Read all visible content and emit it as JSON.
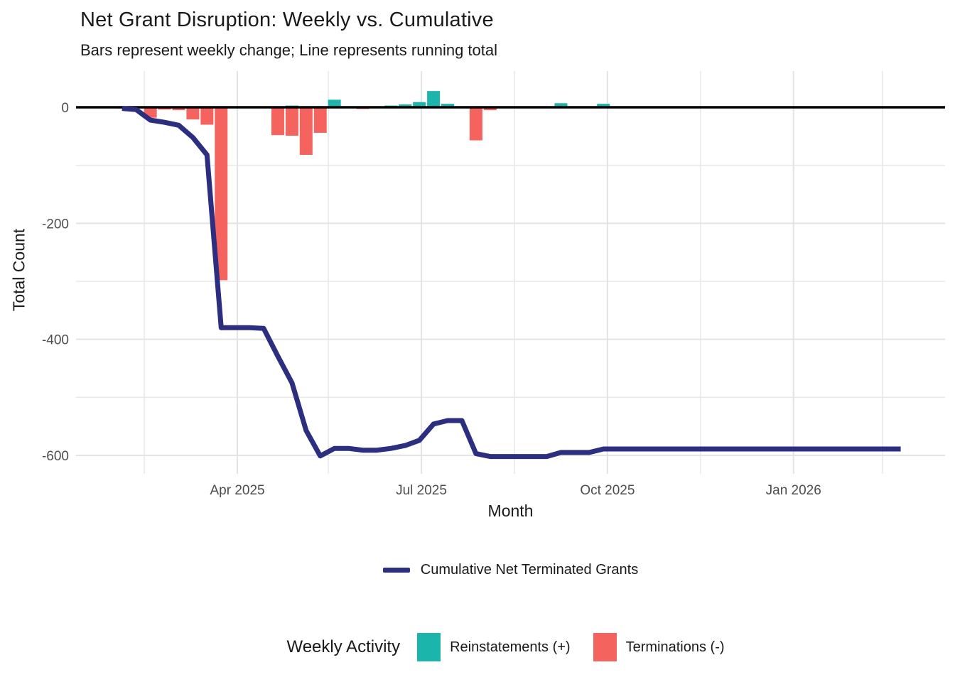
{
  "chart_data": {
    "type": "bar-line-combo",
    "title": "Net Grant Disruption: Weekly vs. Cumulative",
    "subtitle": "Bars represent weekly change; Line represents running total",
    "xlabel": "Month",
    "ylabel": "Total Count",
    "ylim": [
      -625,
      60
    ],
    "grid": true,
    "line_legend": "Cumulative Net Terminated Grants",
    "bar_legend_title": "Weekly Activity",
    "bar_legend": [
      {
        "label": "Reinstatements (+)",
        "color": "#1CB5AC"
      },
      {
        "label": "Terminations (-)",
        "color": "#F4635D"
      }
    ],
    "colors": {
      "reinstatement": "#1CB5AC",
      "termination": "#F4635D",
      "cumulative_line": "#2C2E80",
      "zero_line": "#000000",
      "grid_major": "#E3E3E3",
      "grid_minor": "#E9E9E9",
      "tick_text": "#4D4D4D",
      "text": "#1A1A1A"
    },
    "x_major_ticks": [
      {
        "label": "Apr 2025",
        "date": "2025-04-01"
      },
      {
        "label": "Jul 2025",
        "date": "2025-07-01"
      },
      {
        "label": "Oct 2025",
        "date": "2025-10-01"
      },
      {
        "label": "Jan 2026",
        "date": "2026-01-01"
      }
    ],
    "x_minor_dates": [
      "2025-02-14",
      "2025-05-16",
      "2025-08-16",
      "2025-11-16",
      "2026-02-14"
    ],
    "y_major_ticks": [
      {
        "label": "0",
        "value": 0
      },
      {
        "label": "-200",
        "value": -200
      },
      {
        "label": "-400",
        "value": -400
      },
      {
        "label": "-600",
        "value": -600
      }
    ],
    "y_minor_values": [
      -100,
      -300,
      -500
    ],
    "series": {
      "weekly": [
        {
          "week": "2025-02-03",
          "reinstatements": 0,
          "terminations": -2,
          "cumulative": -2
        },
        {
          "week": "2025-02-10",
          "reinstatements": 0,
          "terminations": -2,
          "cumulative": -4
        },
        {
          "week": "2025-02-17",
          "reinstatements": 0,
          "terminations": -18,
          "cumulative": -22
        },
        {
          "week": "2025-02-24",
          "reinstatements": 0,
          "terminations": -4,
          "cumulative": -26
        },
        {
          "week": "2025-03-03",
          "reinstatements": 0,
          "terminations": -5,
          "cumulative": -31
        },
        {
          "week": "2025-03-10",
          "reinstatements": 0,
          "terminations": -21,
          "cumulative": -52
        },
        {
          "week": "2025-03-17",
          "reinstatements": 0,
          "terminations": -30,
          "cumulative": -82
        },
        {
          "week": "2025-03-24",
          "reinstatements": 0,
          "terminations": -298,
          "cumulative": -380
        },
        {
          "week": "2025-03-31",
          "reinstatements": 0,
          "terminations": 0,
          "cumulative": -380
        },
        {
          "week": "2025-04-07",
          "reinstatements": 0,
          "terminations": 0,
          "cumulative": -380
        },
        {
          "week": "2025-04-14",
          "reinstatements": 0,
          "terminations": -1,
          "cumulative": -381
        },
        {
          "week": "2025-04-21",
          "reinstatements": 0,
          "terminations": -48,
          "cumulative": -429
        },
        {
          "week": "2025-04-28",
          "reinstatements": 3,
          "terminations": -49,
          "cumulative": -475
        },
        {
          "week": "2025-05-05",
          "reinstatements": 0,
          "terminations": -82,
          "cumulative": -557
        },
        {
          "week": "2025-05-12",
          "reinstatements": 0,
          "terminations": -44,
          "cumulative": -601
        },
        {
          "week": "2025-05-19",
          "reinstatements": 13,
          "terminations": 0,
          "cumulative": -588
        },
        {
          "week": "2025-05-26",
          "reinstatements": 0,
          "terminations": 0,
          "cumulative": -588
        },
        {
          "week": "2025-06-02",
          "reinstatements": 0,
          "terminations": -3,
          "cumulative": -591
        },
        {
          "week": "2025-06-09",
          "reinstatements": 0,
          "terminations": 0,
          "cumulative": -591
        },
        {
          "week": "2025-06-16",
          "reinstatements": 3,
          "terminations": 0,
          "cumulative": -588
        },
        {
          "week": "2025-06-23",
          "reinstatements": 5,
          "terminations": 0,
          "cumulative": -583
        },
        {
          "week": "2025-06-30",
          "reinstatements": 9,
          "terminations": 0,
          "cumulative": -574
        },
        {
          "week": "2025-07-07",
          "reinstatements": 28,
          "terminations": 0,
          "cumulative": -546
        },
        {
          "week": "2025-07-14",
          "reinstatements": 6,
          "terminations": 0,
          "cumulative": -540
        },
        {
          "week": "2025-07-21",
          "reinstatements": 0,
          "terminations": 0,
          "cumulative": -540
        },
        {
          "week": "2025-07-28",
          "reinstatements": 0,
          "terminations": -57,
          "cumulative": -597
        },
        {
          "week": "2025-08-04",
          "reinstatements": 0,
          "terminations": -5,
          "cumulative": -602
        },
        {
          "week": "2025-08-11",
          "reinstatements": 0,
          "terminations": 0,
          "cumulative": -602
        },
        {
          "week": "2025-08-18",
          "reinstatements": 0,
          "terminations": 0,
          "cumulative": -602
        },
        {
          "week": "2025-08-25",
          "reinstatements": 0,
          "terminations": 0,
          "cumulative": -602
        },
        {
          "week": "2025-09-01",
          "reinstatements": 0,
          "terminations": 0,
          "cumulative": -602
        },
        {
          "week": "2025-09-08",
          "reinstatements": 7,
          "terminations": 0,
          "cumulative": -595
        },
        {
          "week": "2025-09-15",
          "reinstatements": 0,
          "terminations": 0,
          "cumulative": -595
        },
        {
          "week": "2025-09-22",
          "reinstatements": 0,
          "terminations": 0,
          "cumulative": -595
        },
        {
          "week": "2025-09-29",
          "reinstatements": 6,
          "terminations": 0,
          "cumulative": -589
        },
        {
          "week": "2025-10-06",
          "reinstatements": 0,
          "terminations": 0,
          "cumulative": -589
        },
        {
          "week": "2025-10-13",
          "reinstatements": 0,
          "terminations": 0,
          "cumulative": -589
        },
        {
          "week": "2025-10-20",
          "reinstatements": 0,
          "terminations": 0,
          "cumulative": -589
        },
        {
          "week": "2025-10-27",
          "reinstatements": 0,
          "terminations": 0,
          "cumulative": -589
        },
        {
          "week": "2025-11-03",
          "reinstatements": 0,
          "terminations": 0,
          "cumulative": -589
        },
        {
          "week": "2025-11-10",
          "reinstatements": 0,
          "terminations": 0,
          "cumulative": -589
        },
        {
          "week": "2025-11-17",
          "reinstatements": 0,
          "terminations": 0,
          "cumulative": -589
        },
        {
          "week": "2025-11-24",
          "reinstatements": 0,
          "terminations": 0,
          "cumulative": -589
        },
        {
          "week": "2025-12-01",
          "reinstatements": 0,
          "terminations": 0,
          "cumulative": -589
        },
        {
          "week": "2025-12-08",
          "reinstatements": 0,
          "terminations": 0,
          "cumulative": -589
        },
        {
          "week": "2025-12-15",
          "reinstatements": 0,
          "terminations": 0,
          "cumulative": -589
        },
        {
          "week": "2025-12-22",
          "reinstatements": 0,
          "terminations": 0,
          "cumulative": -589
        },
        {
          "week": "2025-12-29",
          "reinstatements": 0,
          "terminations": 0,
          "cumulative": -589
        },
        {
          "week": "2026-01-05",
          "reinstatements": 0,
          "terminations": 0,
          "cumulative": -589
        },
        {
          "week": "2026-01-12",
          "reinstatements": 0,
          "terminations": 0,
          "cumulative": -589
        },
        {
          "week": "2026-01-19",
          "reinstatements": 0,
          "terminations": 0,
          "cumulative": -589
        },
        {
          "week": "2026-01-26",
          "reinstatements": 0,
          "terminations": 0,
          "cumulative": -589
        },
        {
          "week": "2026-02-02",
          "reinstatements": 0,
          "terminations": 0,
          "cumulative": -589
        },
        {
          "week": "2026-02-09",
          "reinstatements": 0,
          "terminations": 0,
          "cumulative": -589
        },
        {
          "week": "2026-02-16",
          "reinstatements": 0,
          "terminations": 0,
          "cumulative": -589
        },
        {
          "week": "2026-02-23",
          "reinstatements": 0,
          "terminations": 0,
          "cumulative": -589
        }
      ]
    }
  }
}
